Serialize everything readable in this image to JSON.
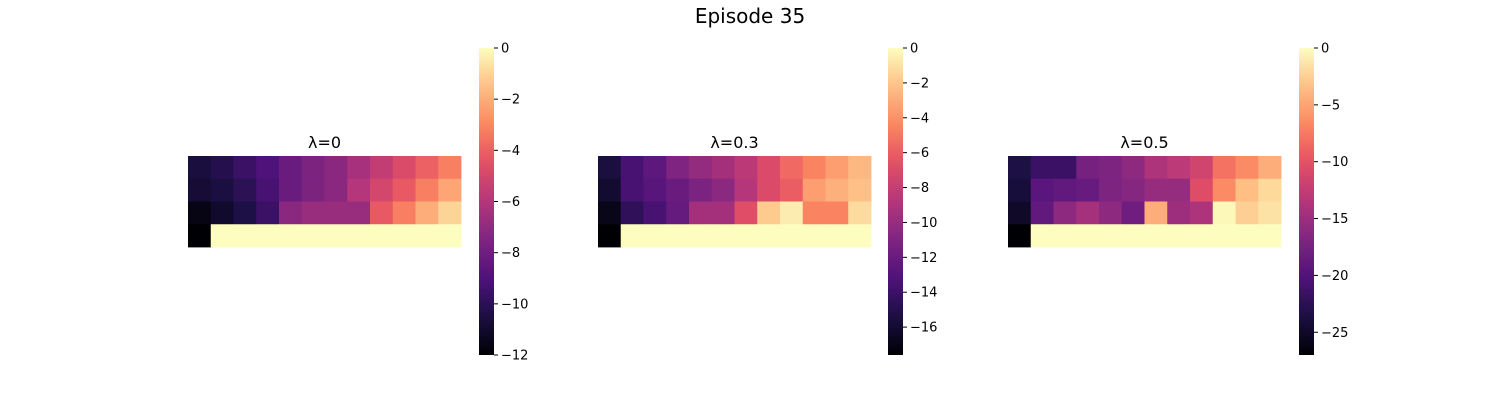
{
  "title": "Episode 35",
  "chart_data": [
    {
      "type": "heatmap",
      "title": "λ=0",
      "colormap": "magma",
      "vmin": -12,
      "vmax": 0,
      "colorbar_ticks": [
        0,
        -2,
        -4,
        -6,
        -8,
        -10,
        -12
      ],
      "colorbar_tick_labels": [
        "0",
        "−2",
        "−4",
        "−6",
        "−8",
        "−10",
        "−12"
      ],
      "values": [
        [
          -10.6,
          -10.2,
          -9.6,
          -9.0,
          -8.2,
          -7.6,
          -7.2,
          -6.4,
          -5.6,
          -4.8,
          -4.0,
          -3.2
        ],
        [
          -10.8,
          -10.5,
          -10.0,
          -9.2,
          -8.2,
          -7.6,
          -7.2,
          -6.0,
          -5.0,
          -4.2,
          -3.2,
          -2.2
        ],
        [
          -11.6,
          -11.0,
          -10.4,
          -9.6,
          -7.2,
          -6.8,
          -6.8,
          -6.8,
          -4.2,
          -3.2,
          -2.0,
          -1.0
        ],
        [
          -12.0,
          0,
          0,
          0,
          0,
          0,
          0,
          0,
          0,
          0,
          0,
          0
        ]
      ]
    },
    {
      "type": "heatmap",
      "title": "λ=0.3",
      "colormap": "magma",
      "vmin": -17.6,
      "vmax": 0,
      "colorbar_ticks": [
        0,
        -2,
        -4,
        -6,
        -8,
        -10,
        -12,
        -14,
        -16
      ],
      "colorbar_tick_labels": [
        "0",
        "−2",
        "−4",
        "−6",
        "−8",
        "−10",
        "−12",
        "−14",
        "−16"
      ],
      "values": [
        [
          -15.5,
          -13.5,
          -12.5,
          -11.0,
          -10.2,
          -9.5,
          -8.5,
          -7.0,
          -5.5,
          -4.5,
          -3.5,
          -2.5
        ],
        [
          -16.0,
          -13.5,
          -12.8,
          -12.0,
          -11.2,
          -10.5,
          -8.8,
          -7.0,
          -6.0,
          -3.5,
          -2.8,
          -2.2
        ],
        [
          -16.8,
          -14.5,
          -13.5,
          -12.2,
          -9.5,
          -9.5,
          -6.8,
          -1.8,
          -0.6,
          -4.5,
          -4.5,
          -1.2
        ],
        [
          -17.6,
          0,
          0,
          0,
          0,
          0,
          0,
          0,
          0,
          0,
          0,
          0
        ]
      ]
    },
    {
      "type": "heatmap",
      "title": "λ=0.5",
      "colormap": "magma",
      "vmin": -27,
      "vmax": 0,
      "colorbar_ticks": [
        0,
        -5,
        -10,
        -15,
        -20,
        -25
      ],
      "colorbar_tick_labels": [
        "0",
        "−5",
        "−10",
        "−15",
        "−20",
        "−25"
      ],
      "values": [
        [
          -23.5,
          -21.5,
          -21.5,
          -17.5,
          -17.0,
          -16.0,
          -14.0,
          -13.0,
          -11.5,
          -8.0,
          -6.5,
          -4.5
        ],
        [
          -24.0,
          -19.5,
          -19.0,
          -18.5,
          -17.0,
          -16.5,
          -15.5,
          -15.5,
          -10.5,
          -6.5,
          -3.5,
          -2.0
        ],
        [
          -25.0,
          -19.0,
          -16.0,
          -14.5,
          -16.0,
          -18.0,
          -4.5,
          -15.0,
          -14.0,
          -0.3,
          -2.5,
          -1.5
        ],
        [
          -27.0,
          0,
          0,
          0,
          0,
          0,
          0,
          0,
          0,
          0,
          0,
          0
        ]
      ]
    }
  ]
}
